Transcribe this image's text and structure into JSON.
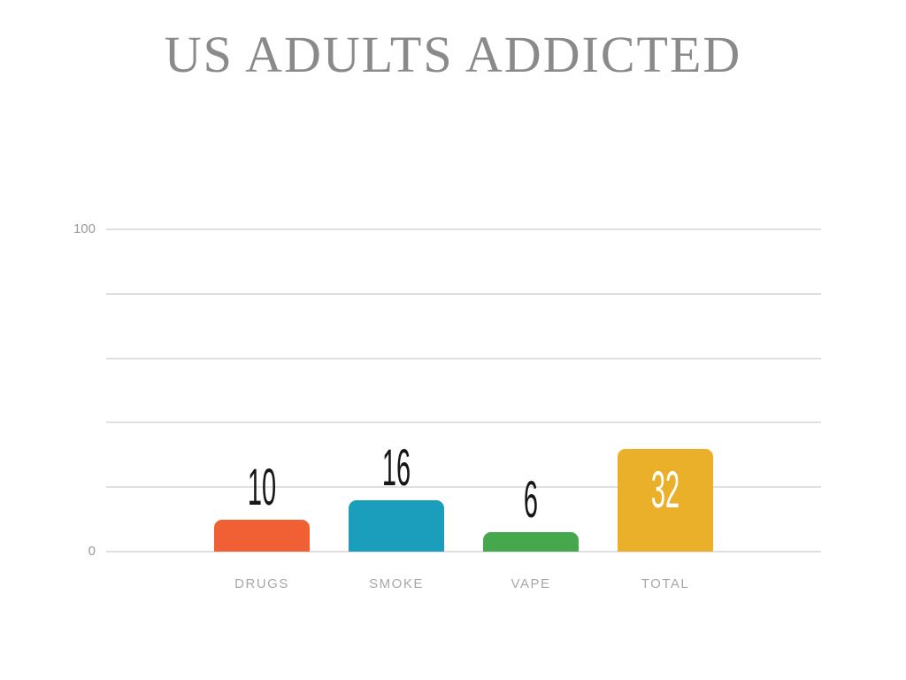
{
  "chart_data": {
    "type": "bar",
    "title": "US ADULTS ADDICTED",
    "categories": [
      "DRUGS",
      "SMOKE",
      "VAPE",
      "TOTAL"
    ],
    "values": [
      10,
      16,
      6,
      32
    ],
    "value_labels": [
      "10",
      "16",
      "6",
      "32"
    ],
    "bar_colors": [
      "#F15F34",
      "#1B9EBB",
      "#45A84C",
      "#EAB02A"
    ],
    "value_label_colors": [
      "#161616",
      "#161616",
      "#161616",
      "#FFFFFF"
    ],
    "value_label_placement": [
      "above",
      "above",
      "above",
      "inside"
    ],
    "xlabel": "",
    "ylabel": "",
    "ylim": [
      0,
      100
    ],
    "yticks": [
      {
        "value": 100,
        "label": "100"
      },
      {
        "value": 80,
        "label": ""
      },
      {
        "value": 60,
        "label": ""
      },
      {
        "value": 40,
        "label": ""
      },
      {
        "value": 20,
        "label": ""
      },
      {
        "value": 0,
        "label": "0"
      }
    ],
    "grid": true,
    "legend": "none",
    "colors": {
      "background": "#FFFFFF",
      "title": "#8A8A8A",
      "gridline": "#E0E0E0",
      "axis_tick": "#999999",
      "category_label": "#A8A8A8"
    }
  }
}
